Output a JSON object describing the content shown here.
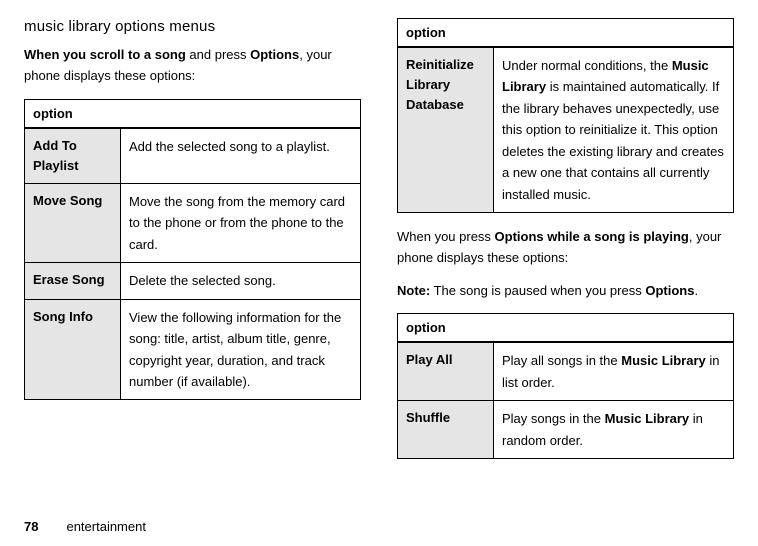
{
  "heading": "music library options menus",
  "intro1_prefix_bold": "When you scroll to a song",
  "intro1_mid": " and press ",
  "intro1_options": "Options",
  "intro1_suffix": ", your phone displays these options:",
  "table_header": "option",
  "table1": [
    {
      "label": "Add To Playlist",
      "desc_parts": [
        {
          "t": "Add the selected song to a playlist."
        }
      ]
    },
    {
      "label": "Move Song",
      "desc_parts": [
        {
          "t": "Move the song from the memory card to the phone or from the phone to the card."
        }
      ]
    },
    {
      "label": "Erase Song",
      "desc_parts": [
        {
          "t": "Delete the selected song."
        }
      ]
    },
    {
      "label": "Song Info",
      "desc_parts": [
        {
          "t": "View the following information for the song: title, artist, album title, genre, copyright year, duration, and track number (if available)."
        }
      ]
    }
  ],
  "table2": [
    {
      "label": "Reinitialize Library Database",
      "desc_parts": [
        {
          "t": "Under normal conditions, the "
        },
        {
          "t": "Music Library",
          "c": true
        },
        {
          "t": " is maintained automatically. If the library behaves unexpectedly, use this option to reinitialize it. This option deletes the existing library and creates a new one that contains all currently installed music."
        }
      ]
    }
  ],
  "intro2_pre": "When you press ",
  "intro2_options": "Options",
  "intro2_bold": " while a song is playing",
  "intro2_suffix": ", your phone displays these options:",
  "note_label": "Note:",
  "note_text_pre": " The song is paused when you press ",
  "note_options": "Options",
  "note_text_post": ".",
  "table3": [
    {
      "label": "Play All",
      "desc_parts": [
        {
          "t": "Play all songs in the "
        },
        {
          "t": "Music Library",
          "c": true
        },
        {
          "t": " in list order."
        }
      ]
    },
    {
      "label": "Shuffle",
      "desc_parts": [
        {
          "t": "Play songs in the "
        },
        {
          "t": "Music Library",
          "c": true
        },
        {
          "t": " in random order."
        }
      ]
    }
  ],
  "page_number": "78",
  "footer_section": "entertainment"
}
